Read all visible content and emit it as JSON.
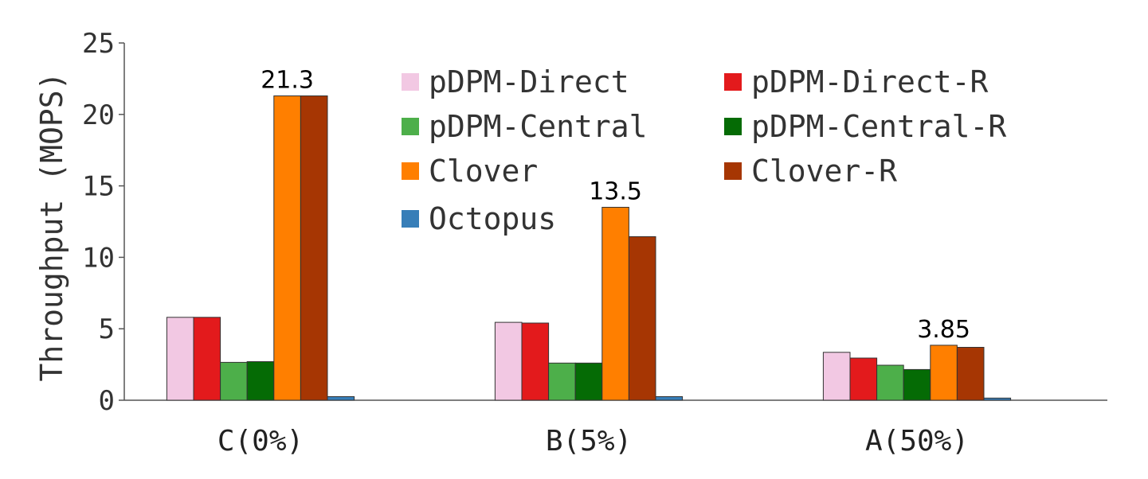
{
  "chart_data": {
    "type": "bar",
    "title": "",
    "xlabel": "",
    "ylabel": "Throughput (MOPS)",
    "ylim": [
      0,
      25
    ],
    "yticks": [
      0,
      5,
      10,
      15,
      20,
      25
    ],
    "grid": false,
    "legend_position": "top-center",
    "categories": [
      "C(0%)",
      "B(5%)",
      "A(50%)"
    ],
    "series": [
      {
        "name": "pDPM-Direct",
        "color": "#f2c8e3",
        "values": [
          5.8,
          5.45,
          3.35
        ]
      },
      {
        "name": "pDPM-Direct-R",
        "color": "#e31a1c",
        "values": [
          5.8,
          5.4,
          2.95
        ]
      },
      {
        "name": "pDPM-Central",
        "color": "#4daf4a",
        "values": [
          2.65,
          2.6,
          2.45
        ]
      },
      {
        "name": "pDPM-Central-R",
        "color": "#056b05",
        "values": [
          2.7,
          2.6,
          2.15
        ]
      },
      {
        "name": "Clover",
        "color": "#ff7f00",
        "values": [
          21.3,
          13.5,
          3.85
        ]
      },
      {
        "name": "Clover-R",
        "color": "#a63603",
        "values": [
          21.3,
          11.45,
          3.7
        ]
      },
      {
        "name": "Octopus",
        "color": "#377eb8",
        "values": [
          0.25,
          0.25,
          0.15
        ]
      }
    ],
    "annotations": [
      {
        "category": "C(0%)",
        "series": "Clover",
        "text": "21.3"
      },
      {
        "category": "B(5%)",
        "series": "Clover",
        "text": "13.5"
      },
      {
        "category": "A(50%)",
        "series": "Clover",
        "text": "3.85"
      }
    ]
  }
}
